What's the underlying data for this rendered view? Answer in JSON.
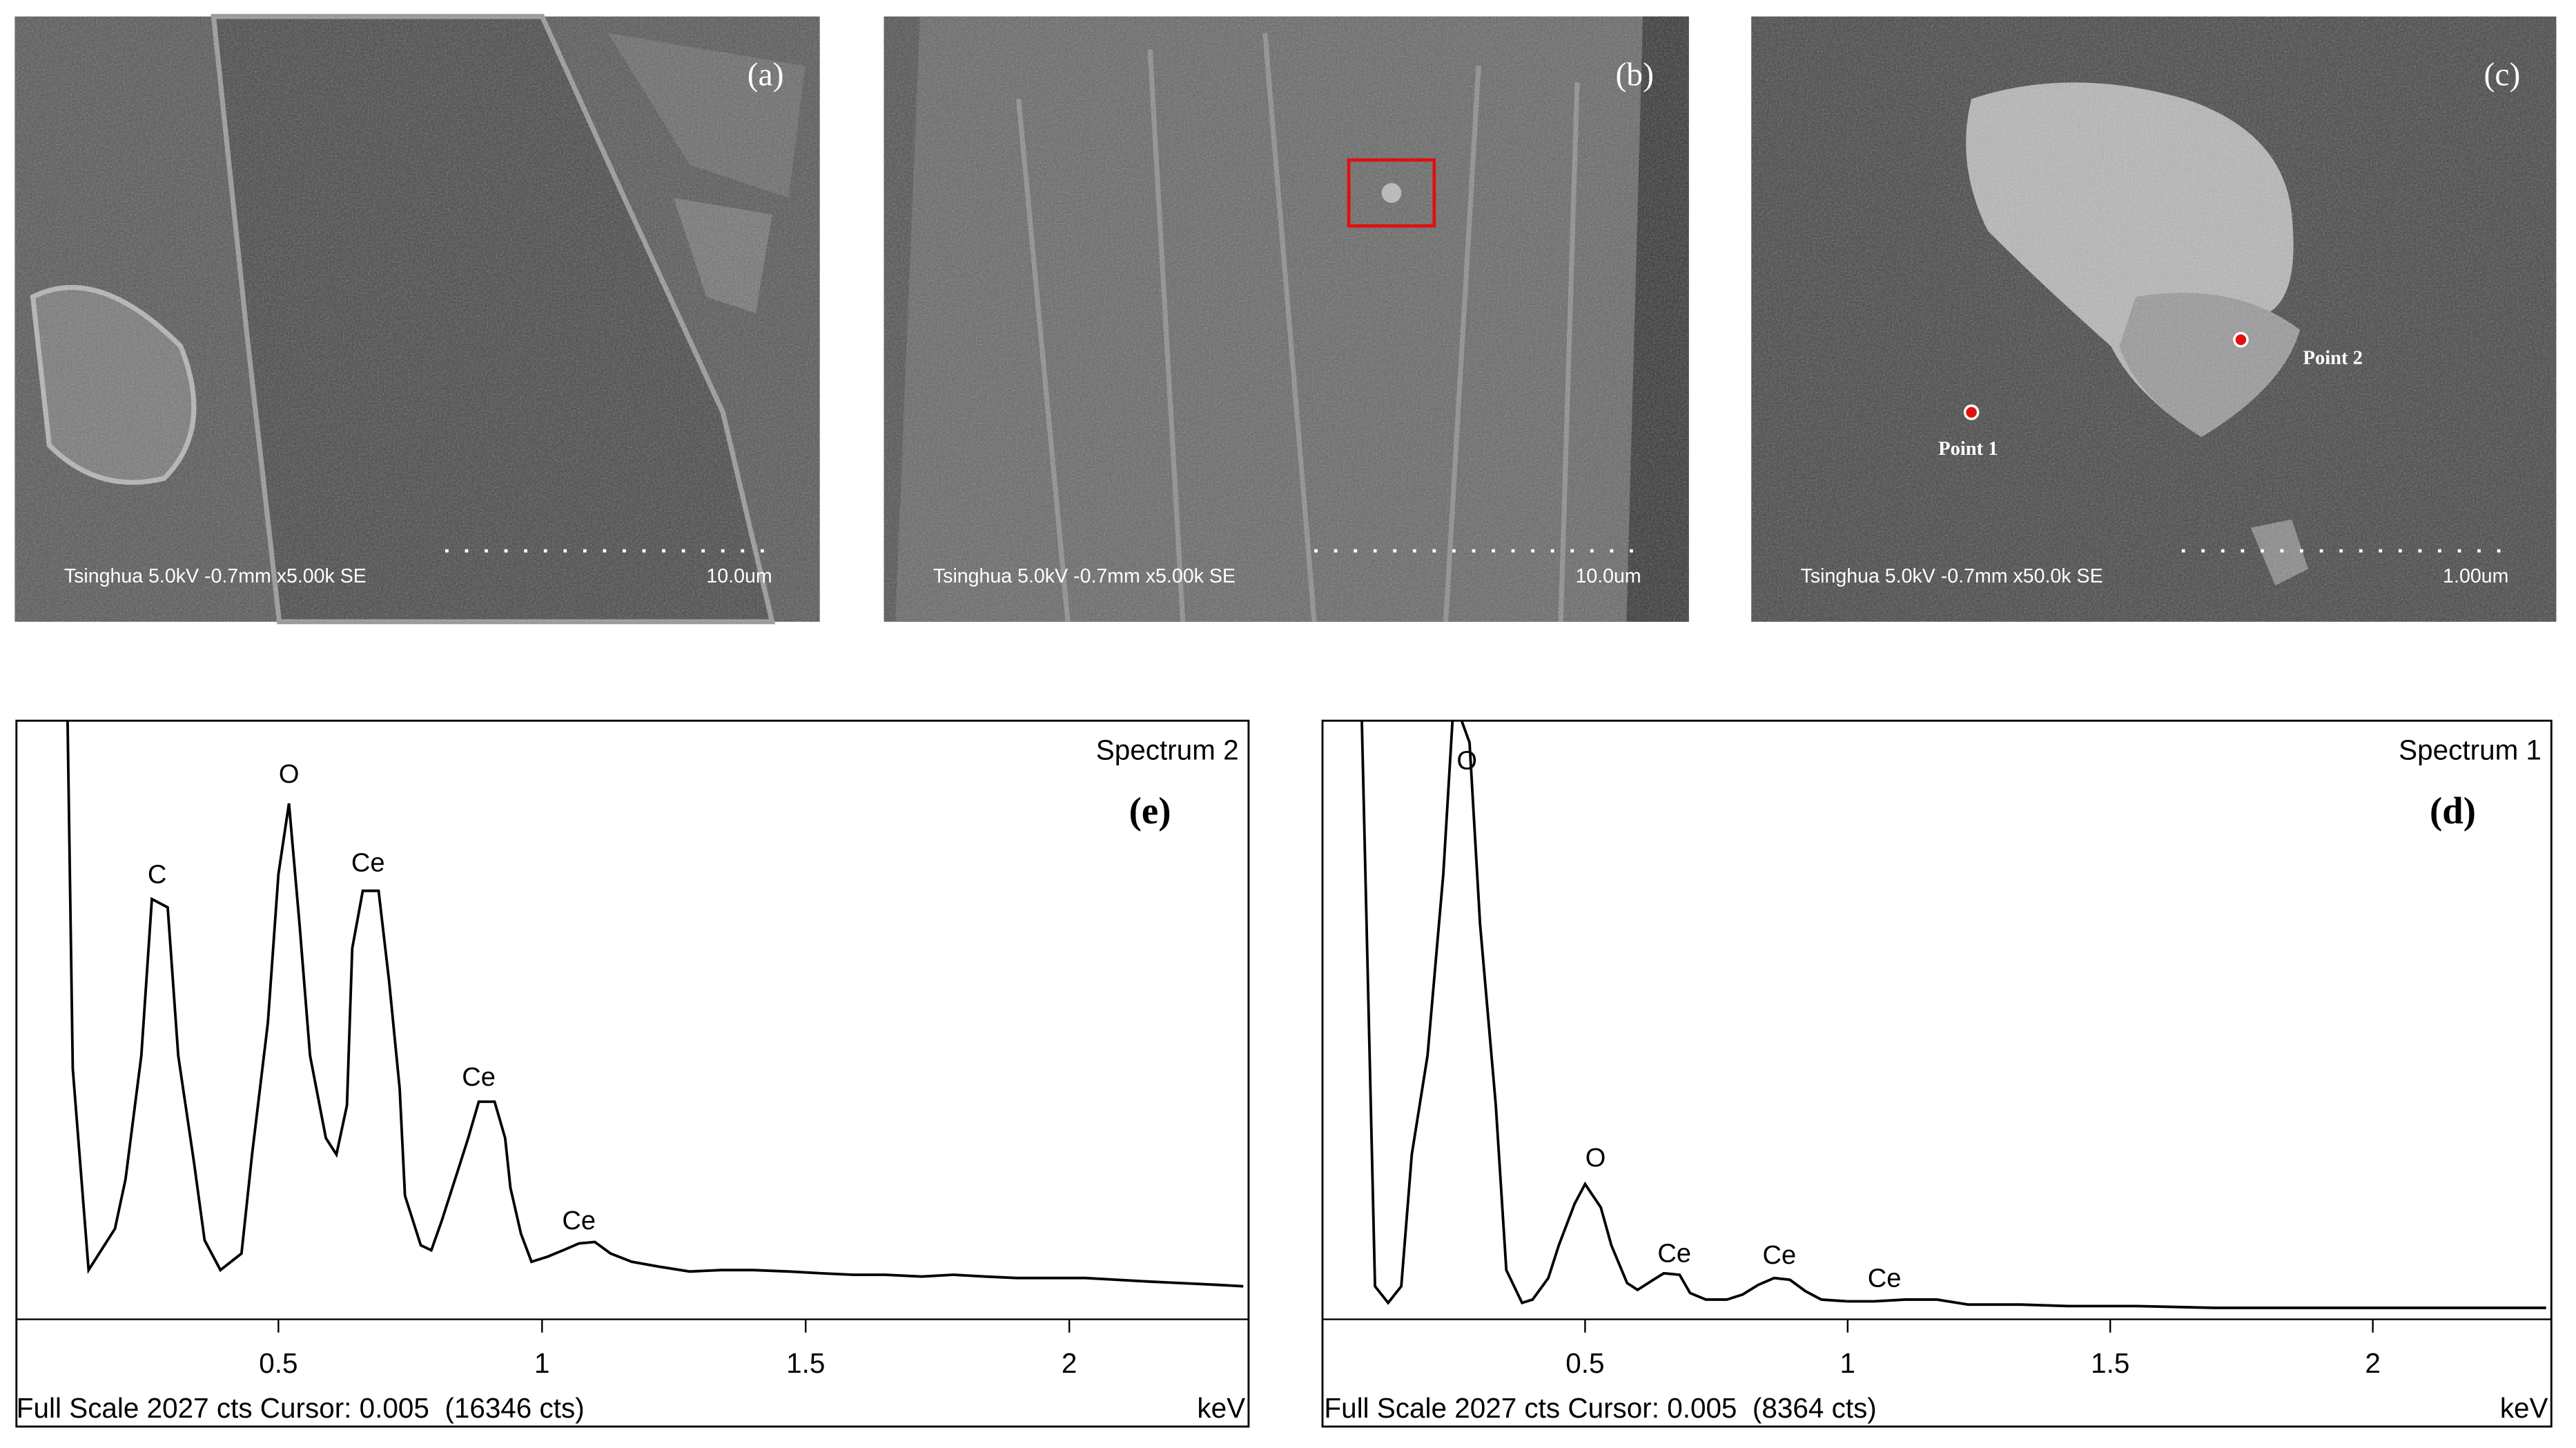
{
  "images": [
    {
      "label": "(a)",
      "caption": "Tsinghua 5.0kV -0.7mm x5.00k SE",
      "scale": "10.0um"
    },
    {
      "label": "(b)",
      "caption": "Tsinghua 5.0kV -0.7mm x5.00k SE",
      "scale": "10.0um"
    },
    {
      "label": "(c)",
      "caption": "Tsinghua 5.0kV -0.7mm x50.0k SE",
      "scale": "1.00um",
      "points": [
        "Point 1",
        "Point 2"
      ]
    }
  ],
  "chart_data": [
    {
      "type": "line",
      "title": "Spectrum 2",
      "panel_label": "(e)",
      "footer": "Full Scale 2027 cts Cursor: 0.005  (16346 cts)",
      "xlabel": "keV",
      "xlim": [
        0,
        2.34
      ],
      "ylim": [
        0,
        2027
      ],
      "xticks": [
        0.5,
        1,
        1.5,
        2
      ],
      "color": "#000000",
      "x": [
        0.097,
        0.11,
        0.14,
        0.16,
        0.19,
        0.21,
        0.24,
        0.26,
        0.29,
        0.31,
        0.34,
        0.36,
        0.39,
        0.43,
        0.45,
        0.48,
        0.5,
        0.52,
        0.54,
        0.56,
        0.59,
        0.61,
        0.63,
        0.64,
        0.66,
        0.69,
        0.71,
        0.73,
        0.74,
        0.77,
        0.79,
        0.81,
        0.84,
        0.86,
        0.88,
        0.91,
        0.93,
        0.94,
        0.96,
        0.98,
        1.01,
        1.04,
        1.07,
        1.1,
        1.13,
        1.17,
        1.22,
        1.28,
        1.34,
        1.4,
        1.47,
        1.53,
        1.59,
        1.65,
        1.72,
        1.78,
        1.84,
        1.9,
        1.97,
        2.03,
        2.09,
        2.15,
        2.21,
        2.28,
        2.33
      ],
      "values": [
        2400,
        848,
        167,
        223,
        307,
        474,
        893,
        1423,
        1395,
        893,
        530,
        268,
        167,
        223,
        558,
        1004,
        1507,
        1747,
        1339,
        893,
        614,
        558,
        725,
        1256,
        1451,
        1451,
        1144,
        781,
        419,
        251,
        234,
        335,
        502,
        614,
        737,
        737,
        614,
        446,
        290,
        195,
        212,
        234,
        257,
        262,
        223,
        195,
        179,
        162,
        167,
        167,
        162,
        156,
        151,
        151,
        145,
        151,
        145,
        140,
        140,
        140,
        134,
        128,
        123,
        117,
        112
      ],
      "annotations": [
        {
          "text": "C",
          "x": 0.27,
          "y": 1501
        },
        {
          "text": "O",
          "x": 0.52,
          "y": 1841
        },
        {
          "text": "Ce",
          "x": 0.67,
          "y": 1540
        },
        {
          "text": "Ce",
          "x": 0.88,
          "y": 815
        },
        {
          "text": "Ce",
          "x": 1.07,
          "y": 329
        }
      ]
    },
    {
      "type": "line",
      "title": "Spectrum 1",
      "panel_label": "(d)",
      "footer": "Full Scale 2027 cts Cursor: 0.005  (8364 cts)",
      "xlabel": "keV",
      "xlim": [
        0,
        2.34
      ],
      "ylim": [
        0,
        2027
      ],
      "xticks": [
        0.5,
        1,
        1.5,
        2
      ],
      "color": "#000000",
      "x": [
        0.07,
        0.1,
        0.125,
        0.15,
        0.17,
        0.2,
        0.23,
        0.25,
        0.28,
        0.3,
        0.33,
        0.35,
        0.38,
        0.4,
        0.43,
        0.45,
        0.48,
        0.5,
        0.53,
        0.55,
        0.58,
        0.6,
        0.63,
        0.65,
        0.68,
        0.7,
        0.73,
        0.77,
        0.8,
        0.83,
        0.86,
        0.89,
        0.92,
        0.95,
        1.0,
        1.05,
        1.11,
        1.17,
        1.23,
        1.33,
        1.42,
        1.55,
        1.7,
        1.86,
        2.02,
        2.17,
        2.33
      ],
      "values": [
        2400,
        112,
        56,
        112,
        558,
        893,
        1507,
        2100,
        1953,
        1339,
        725,
        167,
        56,
        67,
        140,
        251,
        391,
        458,
        379,
        251,
        123,
        100,
        134,
        156,
        151,
        89,
        67,
        67,
        84,
        117,
        140,
        134,
        95,
        67,
        61,
        61,
        67,
        67,
        50,
        50,
        45,
        45,
        39,
        39,
        39,
        39,
        39
      ],
      "annotations": [
        {
          "text": "O",
          "x": 0.275,
          "y": 1886
        },
        {
          "text": "O",
          "x": 0.52,
          "y": 541
        },
        {
          "text": "Ce",
          "x": 0.67,
          "y": 218
        },
        {
          "text": "Ce",
          "x": 0.87,
          "y": 212
        },
        {
          "text": "Ce",
          "x": 1.07,
          "y": 134
        }
      ]
    }
  ]
}
